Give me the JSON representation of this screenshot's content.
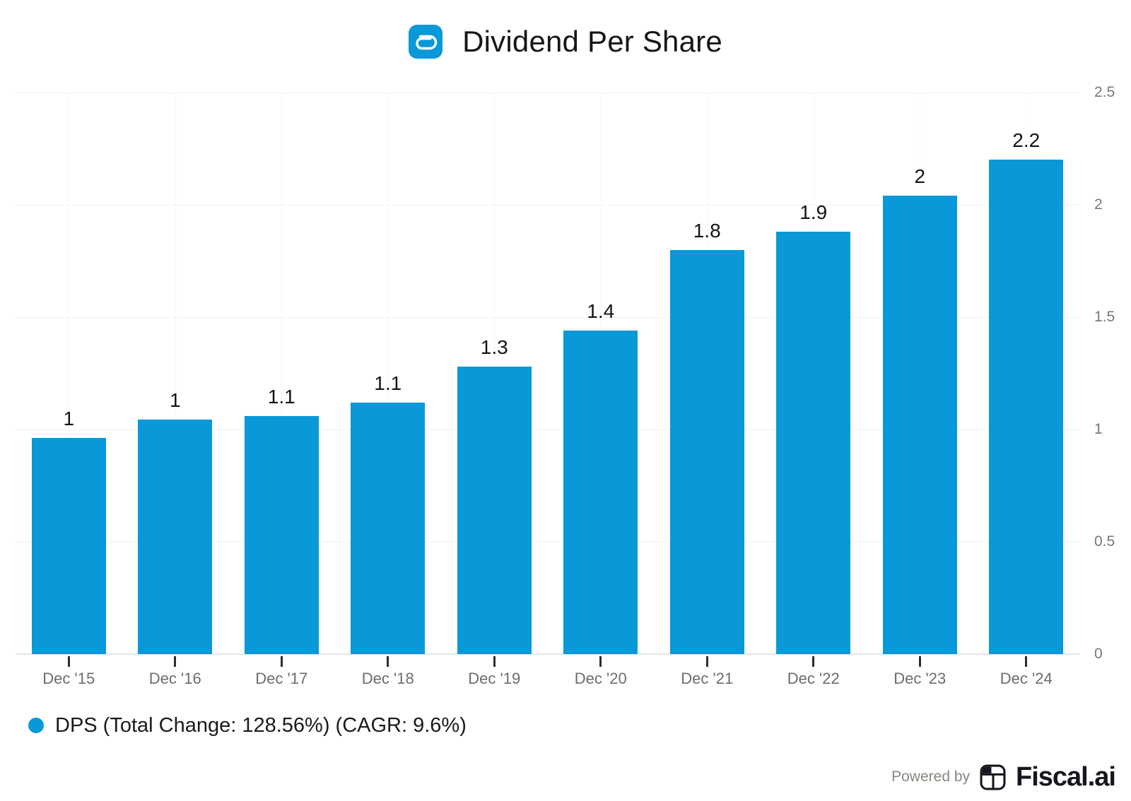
{
  "chart_data": {
    "type": "bar",
    "title": "Dividend Per Share",
    "categories": [
      "Dec '15",
      "Dec '16",
      "Dec '17",
      "Dec '18",
      "Dec '19",
      "Dec '20",
      "Dec '21",
      "Dec '22",
      "Dec '23",
      "Dec '24"
    ],
    "series": [
      {
        "name": "DPS",
        "values": [
          0.9625,
          1.045,
          1.06,
          1.12,
          1.28,
          1.44,
          1.8,
          1.88,
          2.04,
          2.2
        ],
        "labels": [
          "1",
          "1",
          "1.1",
          "1.1",
          "1.3",
          "1.4",
          "1.8",
          "1.9",
          "2",
          "2.2"
        ]
      }
    ],
    "ylim": [
      0,
      2.5
    ],
    "yticks": [
      0,
      0.5,
      1,
      1.5,
      2,
      2.5
    ],
    "ytick_labels": [
      "0",
      "0.5",
      "1",
      "1.5",
      "2",
      "2.5"
    ],
    "yaxis_side": "right",
    "grid": true,
    "bar_color": "#0999d8",
    "legend_position": "bottom-left"
  },
  "legend": {
    "label": "DPS (Total Change: 128.56%) (CAGR: 9.6%)",
    "marker_color": "#0999d8"
  },
  "footer": {
    "powered_by": "Powered by",
    "brand": "Fiscal.ai"
  },
  "colors": {
    "accent_blue": "#0999d8",
    "axis_text_gray": "#7b7773",
    "xlabel_gray": "#6f6c68",
    "value_text": "#141414",
    "brand_dark": "#16161e",
    "powered_by_gray": "#8b867e"
  }
}
